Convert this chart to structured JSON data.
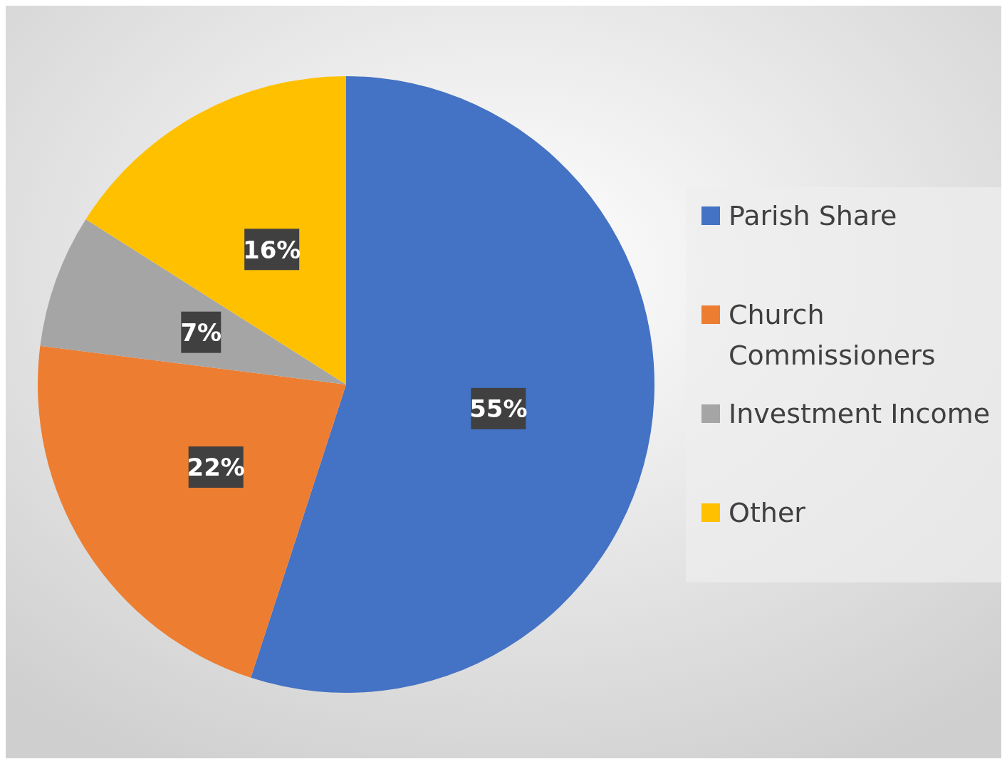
{
  "chart_data": {
    "type": "pie",
    "categories": [
      "Parish Share",
      "Church Commissioners",
      "Investment Income",
      "Other"
    ],
    "values": [
      55,
      22,
      7,
      16
    ],
    "colors": [
      "#4472c4",
      "#ed7d31",
      "#a5a5a5",
      "#ffc000"
    ],
    "value_labels": [
      "55%",
      "22%",
      "7%",
      "16%"
    ],
    "legend": "right"
  }
}
